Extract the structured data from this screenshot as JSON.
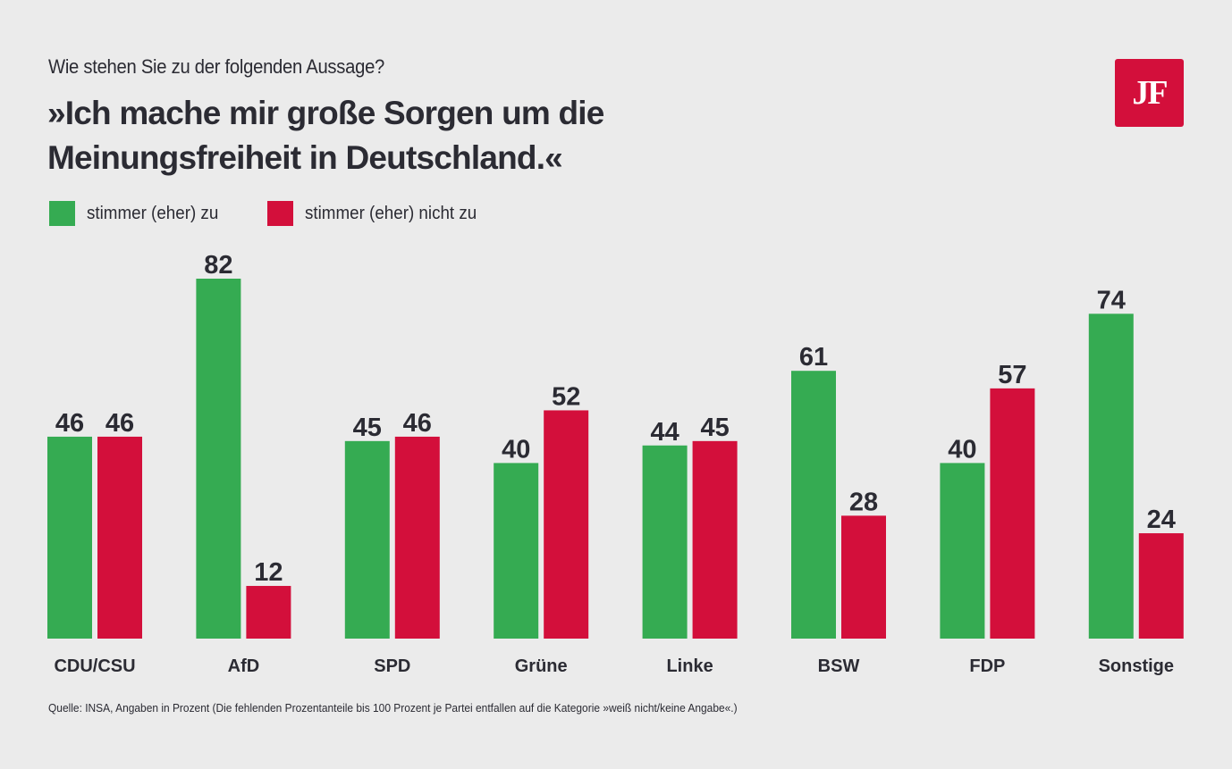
{
  "header": {
    "subtitle": "Wie stehen Sie zu der folgenden Aussage?",
    "title_line1": "»Ich mache mir große Sorgen um die",
    "title_line2": "Meinungsfreiheit in Deutschland.«",
    "logo_text": "JF"
  },
  "colors": {
    "agree": "#35ab52",
    "disagree": "#d30f3b",
    "text": "#2b2b33",
    "background": "#ebebeb"
  },
  "legend": [
    {
      "label": "stimmer (eher) zu",
      "color": "#35ab52"
    },
    {
      "label": "stimmer (eher) nicht zu",
      "color": "#d30f3b"
    }
  ],
  "chart_data": {
    "type": "bar",
    "title": "»Ich mache mir große Sorgen um die Meinungsfreiheit in Deutschland.«",
    "subtitle": "Wie stehen Sie zu der folgenden Aussage?",
    "xlabel": "",
    "ylabel": "",
    "ylim": [
      0,
      82
    ],
    "grid": false,
    "legend_position": "top-left",
    "categories": [
      "CDU/CSU",
      "AfD",
      "SPD",
      "Grüne",
      "Linke",
      "BSW",
      "FDP",
      "Sonstige"
    ],
    "series": [
      {
        "name": "stimmer (eher) zu",
        "color": "#35ab52",
        "values": [
          46,
          82,
          45,
          40,
          44,
          61,
          40,
          74
        ]
      },
      {
        "name": "stimmer (eher) nicht zu",
        "color": "#d30f3b",
        "values": [
          46,
          12,
          46,
          52,
          45,
          28,
          57,
          24
        ]
      }
    ],
    "unit": "Prozent"
  },
  "footer": {
    "source": "Quelle: INSA, Angaben in Prozent (Die fehlenden Prozentanteile bis 100 Prozent je Partei entfallen auf die Kategorie »weiß nicht/keine Angabe«.)"
  }
}
